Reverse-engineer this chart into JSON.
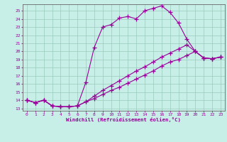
{
  "xlabel": "Windchill (Refroidissement éolien,°C)",
  "bg_color": "#c8eee8",
  "grid_color": "#99ccbb",
  "line_color": "#990099",
  "xlim": [
    -0.5,
    23.5
  ],
  "ylim": [
    12.7,
    25.8
  ],
  "xticks": [
    0,
    1,
    2,
    3,
    4,
    5,
    6,
    7,
    8,
    9,
    10,
    11,
    12,
    13,
    14,
    15,
    16,
    17,
    18,
    19,
    20,
    21,
    22,
    23
  ],
  "yticks": [
    13,
    14,
    15,
    16,
    17,
    18,
    19,
    20,
    21,
    22,
    23,
    24,
    25
  ],
  "line1_x": [
    0,
    1,
    2,
    3,
    4,
    5,
    6,
    7,
    8,
    9,
    10,
    11,
    12,
    13,
    14,
    15,
    16,
    17,
    18,
    19,
    20,
    21,
    22,
    23
  ],
  "line1_y": [
    14.0,
    13.7,
    14.0,
    13.3,
    13.2,
    13.2,
    13.3,
    16.2,
    20.5,
    23.0,
    23.3,
    24.1,
    24.3,
    24.0,
    25.0,
    25.3,
    25.6,
    24.8,
    23.5,
    21.5,
    20.0,
    19.2,
    19.1,
    19.3
  ],
  "line2_x": [
    0,
    1,
    2,
    3,
    4,
    5,
    6,
    7,
    8,
    9,
    10,
    11,
    12,
    13,
    14,
    15,
    16,
    17,
    18,
    19,
    20,
    21,
    22,
    23
  ],
  "line2_y": [
    14.0,
    13.7,
    14.0,
    13.3,
    13.2,
    13.2,
    13.3,
    13.8,
    14.5,
    15.2,
    15.8,
    16.4,
    17.0,
    17.6,
    18.1,
    18.7,
    19.3,
    19.8,
    20.3,
    20.8,
    20.0,
    19.2,
    19.1,
    19.3
  ],
  "line3_x": [
    0,
    1,
    2,
    3,
    4,
    5,
    6,
    7,
    8,
    9,
    10,
    11,
    12,
    13,
    14,
    15,
    16,
    17,
    18,
    19,
    20,
    21,
    22,
    23
  ],
  "line3_y": [
    14.0,
    13.7,
    14.0,
    13.3,
    13.2,
    13.2,
    13.3,
    13.8,
    14.2,
    14.7,
    15.2,
    15.6,
    16.1,
    16.6,
    17.1,
    17.6,
    18.2,
    18.7,
    19.0,
    19.5,
    20.0,
    19.2,
    19.1,
    19.3
  ]
}
